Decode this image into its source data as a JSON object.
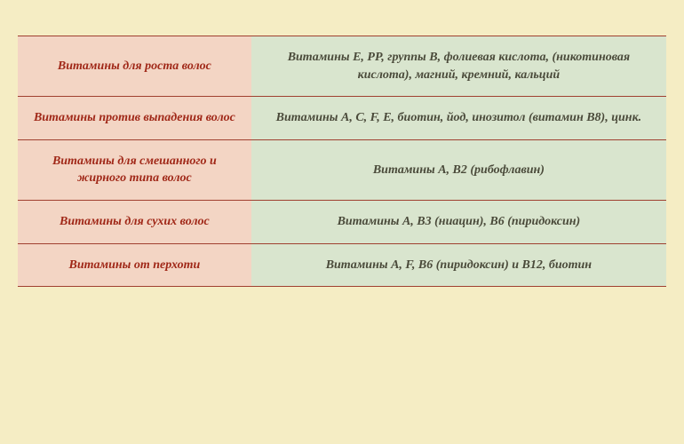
{
  "table": {
    "type": "table",
    "border_color": "#a04030",
    "label_bg": "#f3d5c4",
    "label_color": "#a02818",
    "value_bg": "#d9e5ce",
    "value_color": "#4a4a3a",
    "background": "#f5edc4",
    "font_family": "Georgia, serif",
    "font_style": "italic",
    "font_weight": "bold",
    "font_size": 14,
    "col_widths": [
      "36%",
      "64%"
    ],
    "rows": [
      {
        "label": "Витамины для роста волос",
        "value": "Витамины Е, РР, группы В, фолиевая кислота, (никотиновая кислота), магний, кремний, кальций"
      },
      {
        "label": "Витамины против выпадения волос",
        "value": "Витамины А, С, F, Е, биотин, йод, инозитол (витамин В8), цинк."
      },
      {
        "label": "Витамины для смешанного и жирного типа волос",
        "value": "Витамины А, В2 (рибофлавин)"
      },
      {
        "label": "Витамины для сухих волос",
        "value": "Витамины  А, В3 (ниацин), В6 (пиридоксин)"
      },
      {
        "label": "Витамины от перхоти",
        "value": "Витамины А, F, В6 (пиридоксин) и В12, биотин"
      }
    ]
  }
}
